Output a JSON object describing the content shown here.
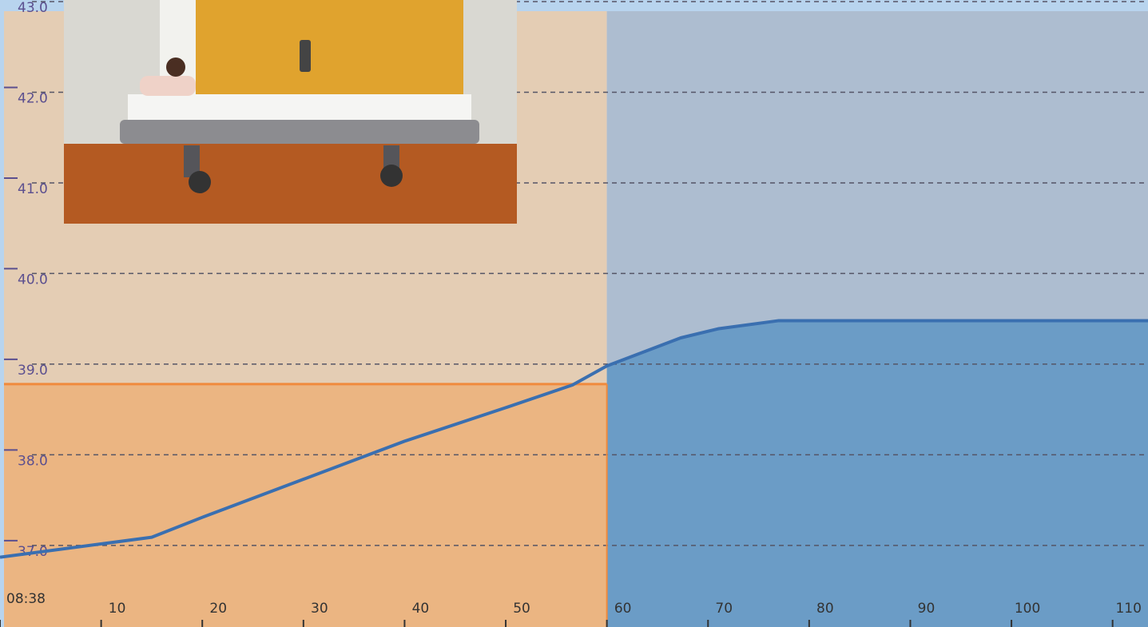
{
  "chart_data": {
    "type": "line",
    "x": [
      0,
      15,
      20,
      30,
      40,
      50,
      56.6,
      60,
      67.3,
      71,
      77,
      113.5
    ],
    "series": [
      {
        "color": "#3a6fb0",
        "values": [
          36.87,
          37.09,
          37.31,
          37.73,
          38.15,
          38.52,
          38.77,
          38.98,
          39.29,
          39.39,
          39.48,
          39.48
        ]
      }
    ],
    "threshold": {
      "value": 38.78,
      "color": "#f08a3c"
    },
    "phase_boundary": 60,
    "xlim": [
      0,
      113.5
    ],
    "xticks": [
      {
        "value": 0,
        "label": "08:38"
      },
      10,
      20,
      30,
      40,
      50,
      60,
      70,
      80,
      90,
      100,
      110
    ],
    "ylim": [
      36.1,
      43.0
    ],
    "yticks": [
      {
        "value": 37,
        "label": "37.0"
      },
      {
        "value": 38,
        "label": "38.0"
      },
      {
        "value": 39,
        "label": "39.0"
      },
      {
        "value": 40,
        "label": "40.0"
      },
      {
        "value": 41,
        "label": "41.0"
      },
      {
        "value": 42,
        "label": "42.0"
      },
      {
        "value": 43,
        "label": "43.0"
      }
    ],
    "grid": true
  }
}
